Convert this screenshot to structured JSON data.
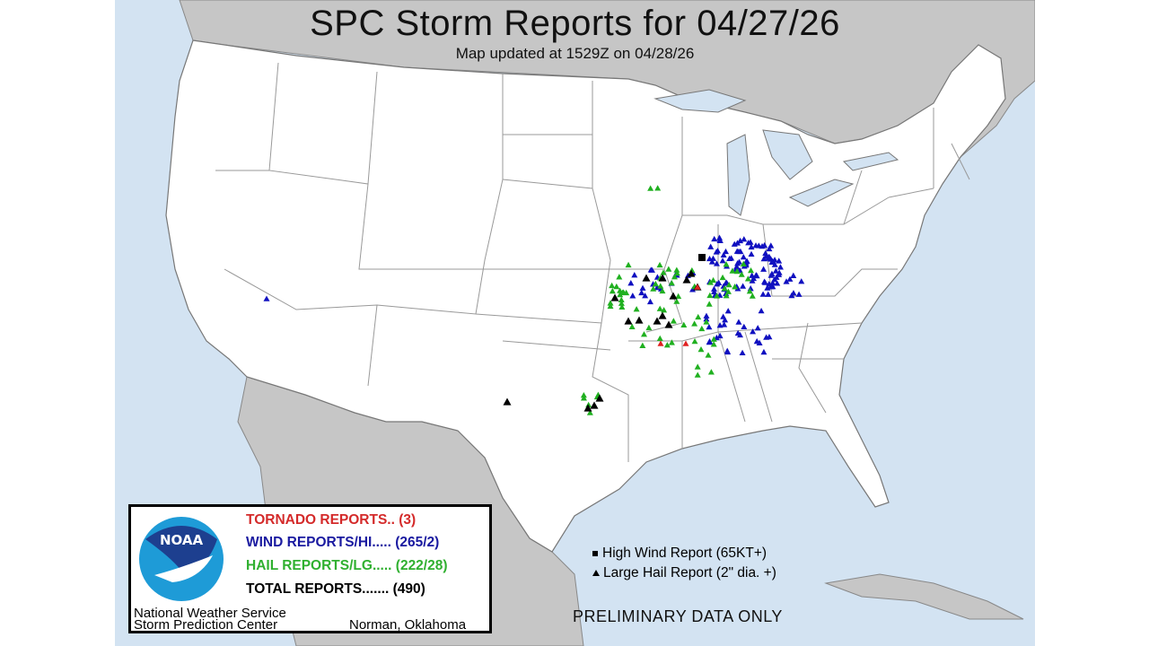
{
  "title": "SPC Storm Reports for 04/27/26",
  "subtitle": "Map updated at 1529Z on 04/28/26",
  "colors": {
    "ocean": "#d3e3f2",
    "land_foreign": "#c6c6c6",
    "land_us": "#ffffff",
    "tornado": "#e02020",
    "wind": "#1010c0",
    "hail": "#20b020",
    "significant": "#000000"
  },
  "legend": {
    "logo_text": "NOAA",
    "tornado": "TORNADO REPORTS.. (3)",
    "wind": "WIND REPORTS/HI..... (265/2)",
    "hail": "HAIL REPORTS/LG..... (222/28)",
    "total": "TOTAL REPORTS....... (490)",
    "org_line1": "National Weather Service",
    "org_line2": "Storm Prediction Center",
    "location": "Norman, Oklahoma"
  },
  "key": {
    "high_wind": "High Wind Report (65KT+)",
    "large_hail": "Large Hail Report (2\" dia. +)",
    "high_wind_icon": "square-icon",
    "large_hail_icon": "triangle-icon"
  },
  "disclaimer": "PRELIMINARY DATA ONLY",
  "counts": {
    "tornado": 3,
    "wind": 265,
    "wind_high": 2,
    "hail": 222,
    "hail_large": 28,
    "total": 490
  }
}
